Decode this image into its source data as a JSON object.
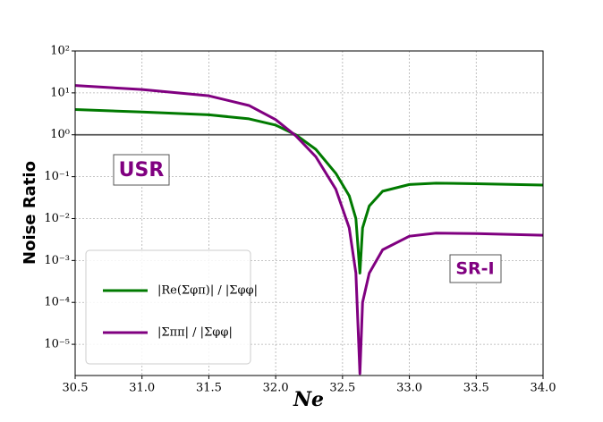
{
  "chart_data": {
    "type": "line",
    "x_label": "Ne",
    "y_label": "Noise Ratio",
    "yscale": "log",
    "grid": true,
    "xlim": [
      30.5,
      34.0
    ],
    "ylim": [
      1.8e-06,
      100
    ],
    "xticks": [
      30.5,
      {
        "value": 31,
        "label": "31.0"
      },
      31.5,
      {
        "value": 32,
        "label": "32.0"
      },
      32.5,
      {
        "value": 33,
        "label": "33.0"
      },
      33.5,
      {
        "value": 34,
        "label": "34.0"
      }
    ],
    "yticks": [
      {
        "value": 100,
        "label": "10²"
      },
      {
        "value": 10,
        "label": "10¹"
      },
      {
        "value": 1,
        "label": "10⁰"
      },
      {
        "value": 0.1,
        "label": "10⁻¹"
      },
      {
        "value": 0.01,
        "label": "10⁻²"
      },
      {
        "value": 0.001,
        "label": "10⁻³"
      },
      {
        "value": 0.0001,
        "label": "10⁻⁴"
      },
      {
        "value": 1e-05,
        "label": "10⁻⁵"
      }
    ],
    "reference_line": 1,
    "annotations": [
      "USR",
      "SR-I"
    ],
    "legend": "lower left",
    "series": [
      {
        "name": "|Re(Σφπ)| / |Σφφ|",
        "color": "#007a00",
        "x": [
          30.5,
          31.0,
          31.5,
          31.8,
          32.0,
          32.15,
          32.3,
          32.45,
          32.55,
          32.6,
          32.63,
          32.65,
          32.7,
          32.8,
          33.0,
          33.2,
          33.5,
          34.0
        ],
        "values": [
          4,
          3.5,
          3,
          2.4,
          1.7,
          1.0,
          0.45,
          0.12,
          0.035,
          0.01,
          0.0005,
          0.006,
          0.02,
          0.045,
          0.065,
          0.07,
          0.068,
          0.063
        ]
      },
      {
        "name": "|Σππ| / |Σφφ|",
        "color": "#800080",
        "x": [
          30.5,
          31.0,
          31.5,
          31.8,
          32.0,
          32.15,
          32.3,
          32.45,
          32.55,
          32.6,
          32.63,
          32.65,
          32.7,
          32.8,
          33.0,
          33.2,
          33.5,
          34.0
        ],
        "values": [
          15,
          12,
          8.5,
          5,
          2.3,
          0.95,
          0.3,
          0.05,
          0.006,
          0.0005,
          2e-06,
          0.0001,
          0.0005,
          0.0018,
          0.0038,
          0.0045,
          0.0044,
          0.004
        ]
      }
    ]
  }
}
